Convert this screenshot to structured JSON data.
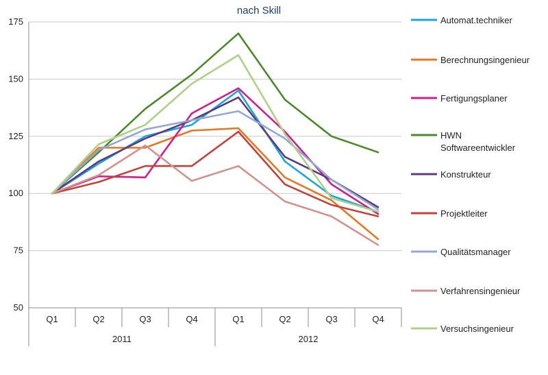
{
  "chart_data": {
    "type": "line",
    "title": "nach Skill",
    "xlabel": "",
    "ylabel": "",
    "ylim": [
      50,
      175
    ],
    "yticks": [
      50,
      75,
      100,
      125,
      150,
      175
    ],
    "categories": [
      "Q1",
      "Q2",
      "Q3",
      "Q4",
      "Q1",
      "Q2",
      "Q3",
      "Q4"
    ],
    "groups": [
      {
        "label": "2011",
        "span": 4
      },
      {
        "label": "2012",
        "span": 4
      }
    ],
    "grid": "horizontal",
    "legend": "right",
    "series": [
      {
        "name": "Automat.techniker",
        "color": "#1ba6e0",
        "values": [
          100,
          113,
          125,
          130,
          145,
          114,
          99,
          92
        ]
      },
      {
        "name": "Berechnungsingenieur",
        "color": "#e87722",
        "values": [
          100,
          120,
          120,
          127.5,
          128.5,
          107,
          97,
          80
        ]
      },
      {
        "name": "Fertigungsplaner",
        "color": "#d81b8a",
        "values": [
          100,
          107.5,
          107,
          135,
          146,
          127,
          104,
          91
        ]
      },
      {
        "name": "HWN\nSoftwareentwickler",
        "color": "#4a8a2a",
        "values": [
          100,
          118,
          137,
          152,
          170,
          141,
          125,
          118
        ]
      },
      {
        "name": "Konstrukteur",
        "color": "#5c3b7e",
        "values": [
          100,
          114,
          124,
          132,
          142,
          116,
          106,
          94
        ]
      },
      {
        "name": "Projektleiter",
        "color": "#c4423a",
        "values": [
          100,
          105,
          112,
          112,
          127,
          104,
          95,
          90
        ]
      },
      {
        "name": "Qualitätsmanager",
        "color": "#93a8d6",
        "values": [
          100,
          119,
          128,
          132,
          136,
          124,
          106,
          93
        ]
      },
      {
        "name": "Verfahrensingenieur",
        "color": "#d4918e",
        "values": [
          100,
          108,
          121,
          105.5,
          112,
          96.5,
          90,
          77.5
        ]
      },
      {
        "name": "Versuchsingenieur",
        "color": "#afd087",
        "values": [
          100,
          121.5,
          130,
          148,
          160.5,
          126,
          98,
          92
        ]
      }
    ]
  }
}
